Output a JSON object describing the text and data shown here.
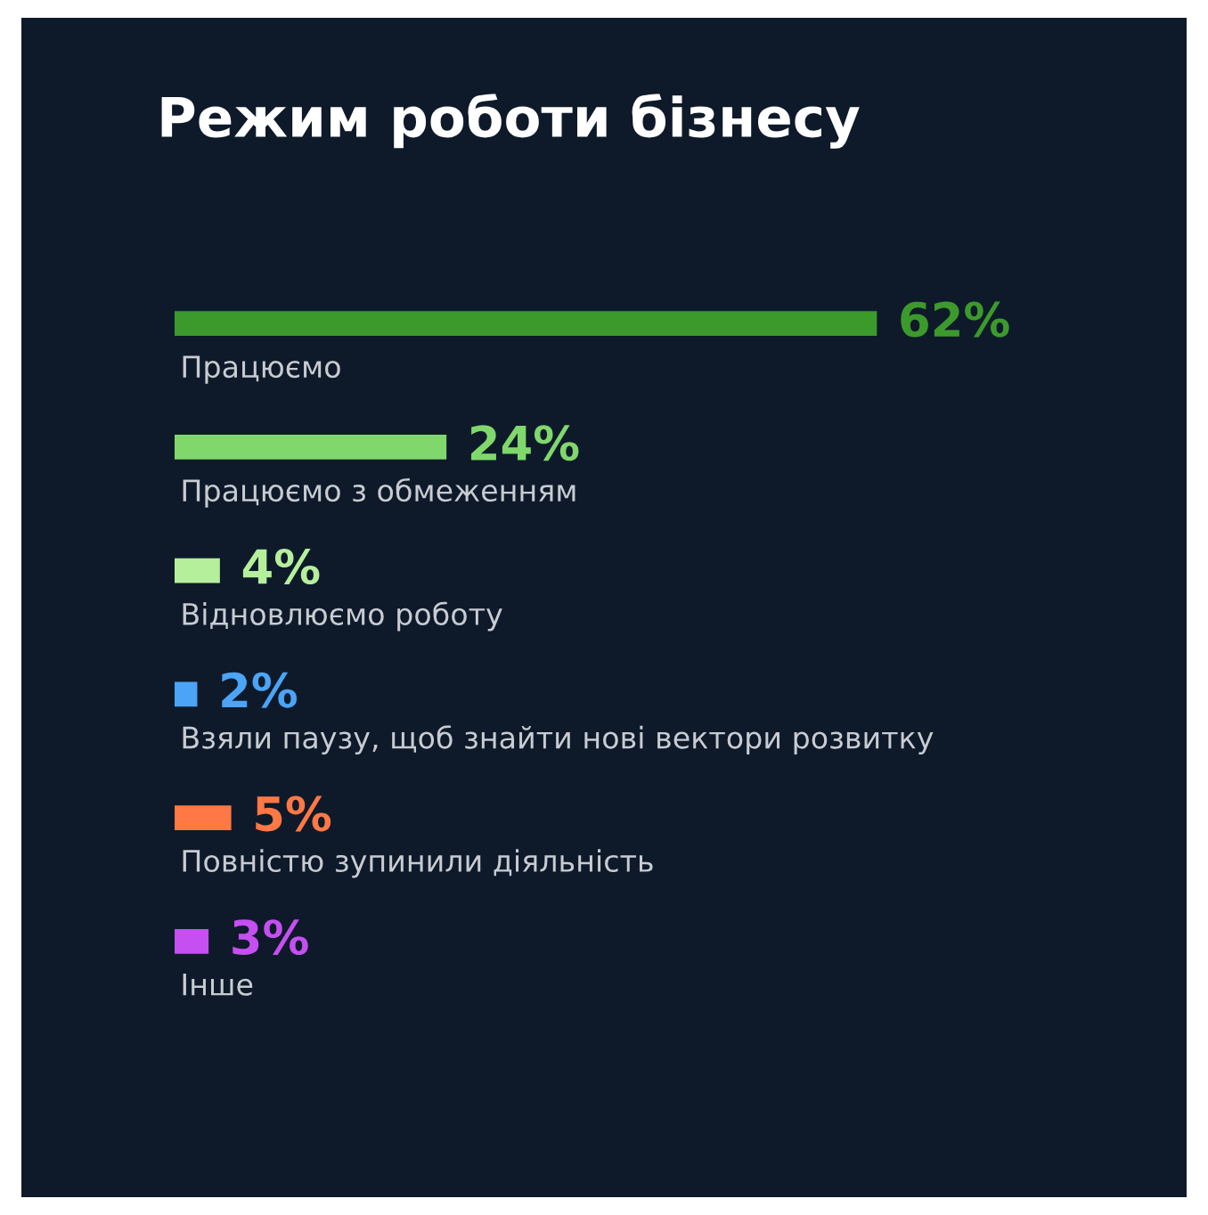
{
  "chart_data": {
    "type": "bar",
    "orientation": "horizontal",
    "title": "Режим роботи бізнесу",
    "categories": [
      "Працюємо",
      "Працюємо з обмеженням",
      "Відновлюємо роботу",
      "Взяли паузу, щоб знайти нові вектори розвитку",
      "Повністю зупинили діяльність",
      "Інше"
    ],
    "values": [
      62,
      24,
      4,
      2,
      5,
      3
    ],
    "colors": [
      "#3c9a2c",
      "#80d86c",
      "#b6ef9c",
      "#4ba4f5",
      "#ff7845",
      "#c54ff0"
    ],
    "data_labels": true,
    "value_labels": [
      "62%",
      "24%",
      "4%",
      "2%",
      "5%",
      "3%"
    ]
  }
}
